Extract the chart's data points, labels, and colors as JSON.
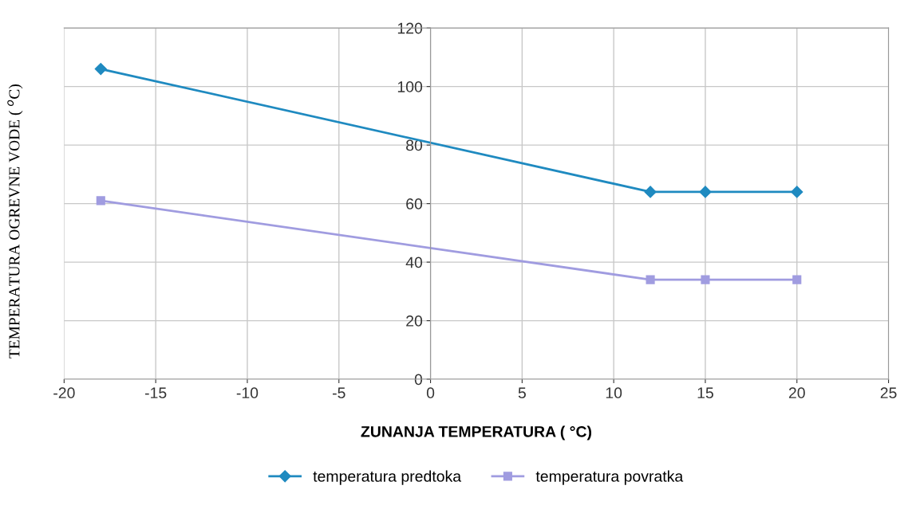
{
  "chart_data": {
    "type": "line",
    "xlabel": "ZUNANJA TEMPERATURA ( °C)",
    "ylabel": "TEMPERATURA OGREVNE VODE ( $^{o}$C)",
    "x": [
      -18,
      12,
      15,
      20
    ],
    "series": [
      {
        "name": "temperatura predtoka",
        "color": "#1f8ac0",
        "marker": "diamond",
        "values": [
          106,
          64,
          64,
          64
        ]
      },
      {
        "name": "temperatura povratka",
        "color": "#a09ce0",
        "marker": "square",
        "values": [
          61,
          34,
          34,
          34
        ]
      }
    ],
    "xlim": [
      -20,
      25
    ],
    "xticks": [
      -20,
      -15,
      -10,
      -5,
      0,
      5,
      10,
      15,
      20,
      25
    ],
    "ylim": [
      0,
      120
    ],
    "yticks": [
      0,
      20,
      40,
      60,
      80,
      100,
      120
    ],
    "grid": true,
    "legend": "bottom",
    "line_style": "solid"
  }
}
